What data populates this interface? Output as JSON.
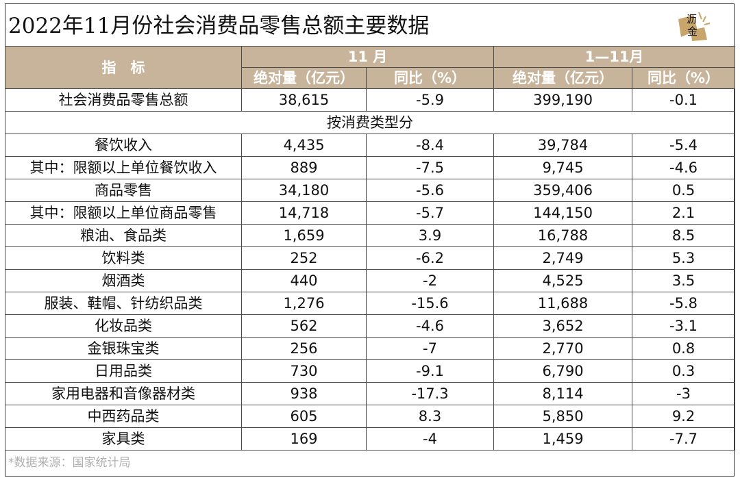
{
  "title": "2022年11月份社会消费品零售总额主要数据",
  "logo": {
    "text_top": "沥",
    "text_bottom": "金"
  },
  "table": {
    "header": {
      "indicator": "指　标",
      "group1": "11 月",
      "group2": "1—11月",
      "sub1": "绝对量（亿元）",
      "sub2": "同比（%）",
      "sub3": "绝对量（亿元）",
      "sub4": "同比（%）"
    },
    "total": {
      "label": "社会消费品零售总额",
      "v1": "38,615",
      "v2": "-5.9",
      "v3": "399,190",
      "v4": "-0.1"
    },
    "section_label": "按消费类型分",
    "rows": [
      {
        "label": "餐饮收入",
        "v1": "4,435",
        "v2": "-8.4",
        "v3": "39,784",
        "v4": "-5.4"
      },
      {
        "label": "其中：限额以上单位餐饮收入",
        "v1": "889",
        "v2": "-7.5",
        "v3": "9,745",
        "v4": "-4.6"
      },
      {
        "label": "商品零售",
        "v1": "34,180",
        "v2": "-5.6",
        "v3": "359,406",
        "v4": "0.5"
      },
      {
        "label": "其中：限额以上单位商品零售",
        "v1": "14,718",
        "v2": "-5.7",
        "v3": "144,150",
        "v4": "2.1"
      },
      {
        "label": "粮油、食品类",
        "v1": "1,659",
        "v2": "3.9",
        "v3": "16,788",
        "v4": "8.5"
      },
      {
        "label": "饮料类",
        "v1": "252",
        "v2": "-6.2",
        "v3": "2,749",
        "v4": "5.3"
      },
      {
        "label": "烟酒类",
        "v1": "440",
        "v2": "-2",
        "v3": "4,525",
        "v4": "3.5"
      },
      {
        "label": "服装、鞋帽、针纺织品类",
        "v1": "1,276",
        "v2": "-15.6",
        "v3": "11,688",
        "v4": "-5.8"
      },
      {
        "label": "化妆品类",
        "v1": "562",
        "v2": "-4.6",
        "v3": "3,652",
        "v4": "-3.1"
      },
      {
        "label": "金银珠宝类",
        "v1": "256",
        "v2": "-7",
        "v3": "2,770",
        "v4": "0.8"
      },
      {
        "label": "日用品类",
        "v1": "730",
        "v2": "-9.1",
        "v3": "6,790",
        "v4": "0.3"
      },
      {
        "label": "家用电器和音像器材类",
        "v1": "938",
        "v2": "-17.3",
        "v3": "8,114",
        "v4": "-3"
      },
      {
        "label": "中西药品类",
        "v1": "605",
        "v2": "8.3",
        "v3": "5,850",
        "v4": "9.2"
      },
      {
        "label": "家具类",
        "v1": "169",
        "v2": "-4",
        "v3": "1,459",
        "v4": "-7.7"
      }
    ]
  },
  "source": "*数据来源：国家统计局",
  "colors": {
    "header_bg": "#c8b49a",
    "header_text": "#ffffff",
    "logo_accent": "#c8a56a"
  }
}
